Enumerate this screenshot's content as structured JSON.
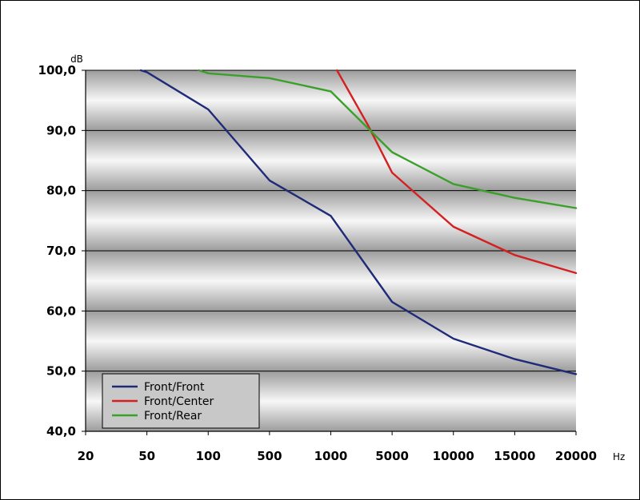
{
  "chart_data": {
    "type": "line",
    "categories": [
      "20",
      "50",
      "100",
      "500",
      "1000",
      "5000",
      "10000",
      "15000",
      "20000"
    ],
    "ylabel": "dB",
    "xlabel": "Hz",
    "ylim": [
      40,
      100
    ],
    "yticks": [
      "40,0",
      "50,0",
      "60,0",
      "70,0",
      "80,0",
      "90,0",
      "100,0"
    ],
    "grid": true,
    "legend_position": "bottom-left",
    "series": [
      {
        "name": "Front/Front",
        "color": "#1f2a78",
        "points": [
          [
            0.9,
            100
          ],
          [
            1,
            99.7
          ],
          [
            2,
            93.5
          ],
          [
            3,
            81.7
          ],
          [
            4,
            75.8
          ],
          [
            5,
            61.5
          ],
          [
            6,
            55.4
          ],
          [
            7,
            52
          ],
          [
            8,
            49.5
          ]
        ]
      },
      {
        "name": "Front/Center",
        "color": "#d42020",
        "points": [
          [
            4.1,
            100
          ],
          [
            4.6,
            91
          ],
          [
            5,
            83
          ],
          [
            6,
            74
          ],
          [
            7,
            69.3
          ],
          [
            8,
            66.3
          ]
        ]
      },
      {
        "name": "Front/Rear",
        "color": "#3aa02a",
        "points": [
          [
            1.85,
            100
          ],
          [
            2,
            99.5
          ],
          [
            3,
            98.7
          ],
          [
            4,
            96.5
          ],
          [
            5,
            86.4
          ],
          [
            6,
            81.1
          ],
          [
            7,
            78.8
          ],
          [
            8,
            77.1
          ]
        ]
      }
    ]
  }
}
